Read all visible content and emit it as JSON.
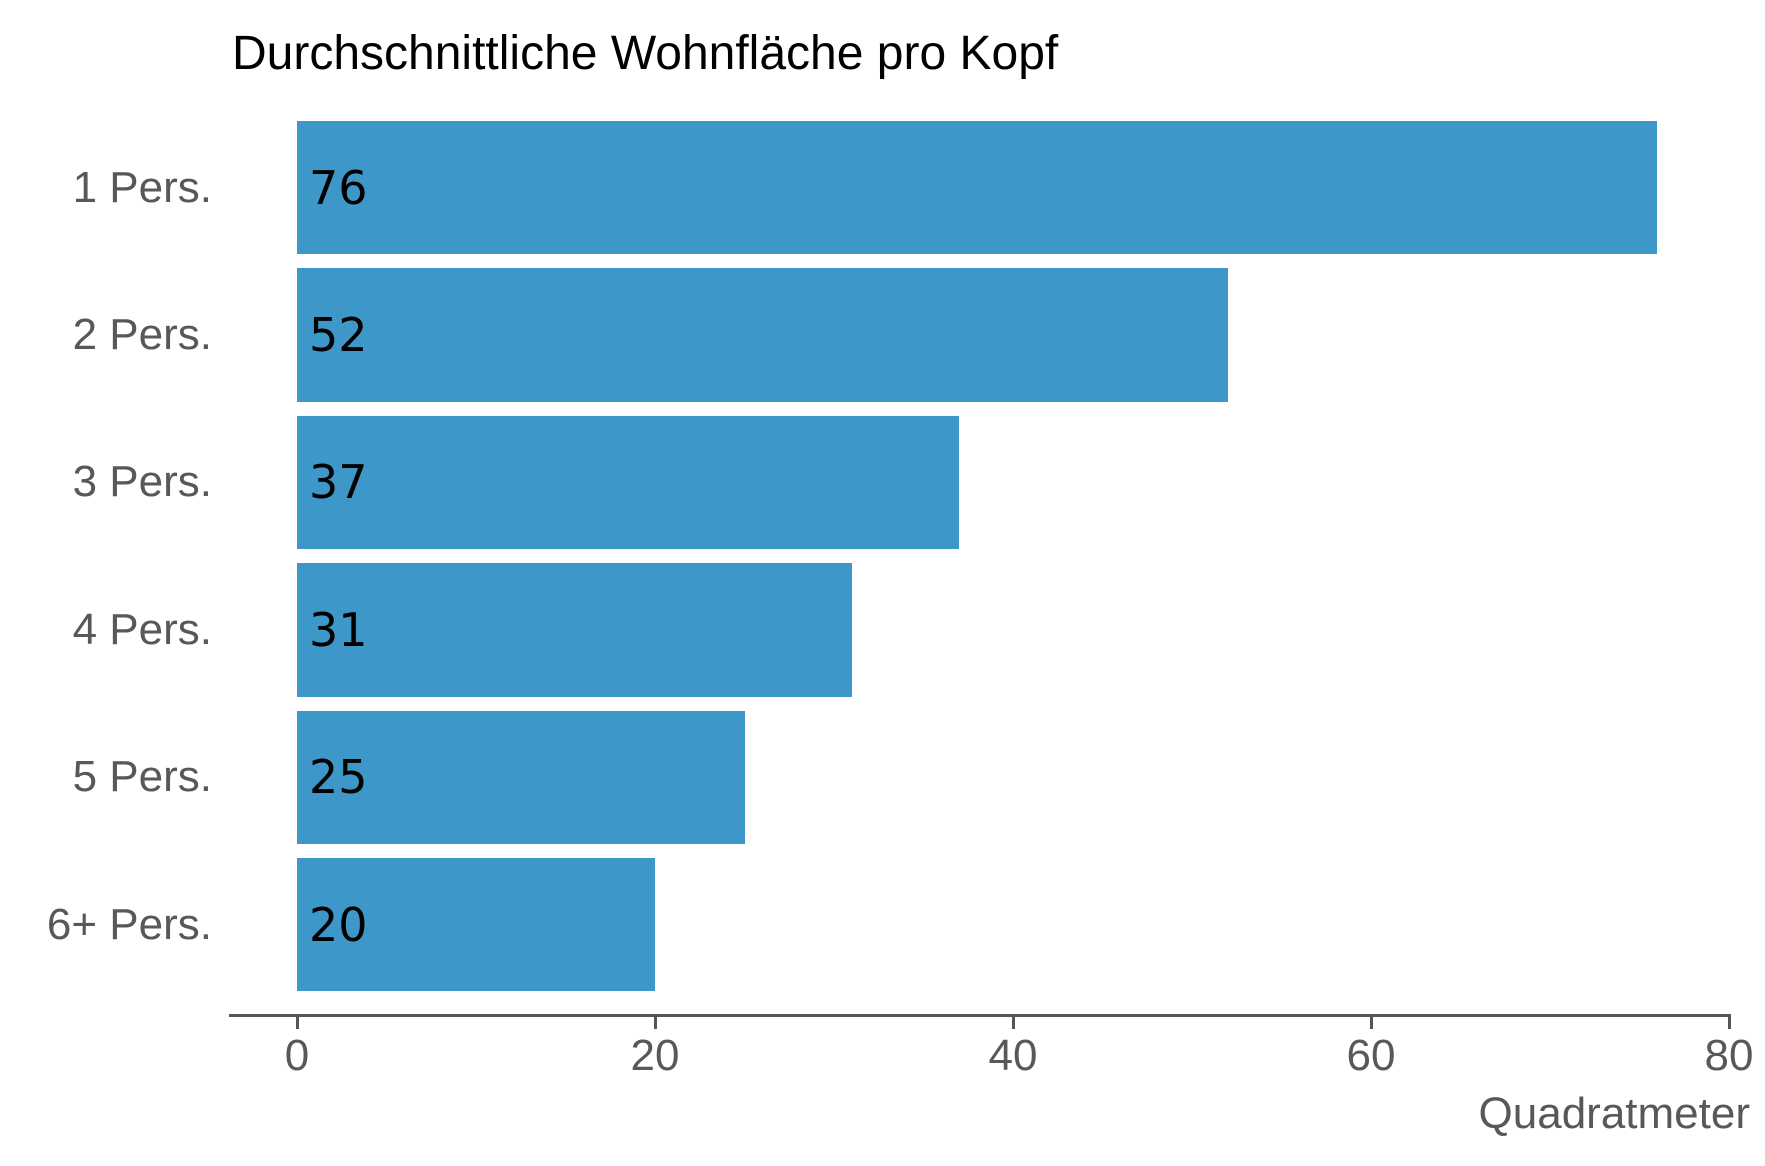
{
  "page": {
    "background": "#ffffff"
  },
  "chart_data": {
    "type": "bar",
    "orientation": "horizontal",
    "title": "Durchschnittliche Wohnfläche pro Kopf",
    "categories": [
      "1 Pers.",
      "2 Pers.",
      "3 Pers.",
      "4 Pers.",
      "5 Pers.",
      "6+ Pers."
    ],
    "values": [
      76,
      52,
      37,
      31,
      25,
      20
    ],
    "value_labels": [
      "76",
      "52",
      "37",
      "31",
      "25",
      "20"
    ],
    "xlabel": "Quadratmeter",
    "ylabel": "",
    "xticks": [
      0,
      20,
      40,
      60,
      80
    ],
    "xlim": [
      0,
      80
    ],
    "grid": false,
    "legend": null,
    "colors": {
      "bar": "#3d97c8",
      "title": "#000000",
      "value_label": "#000000",
      "category_label": "#58585a",
      "tick_label": "#58585a",
      "axis": "#555557"
    }
  }
}
